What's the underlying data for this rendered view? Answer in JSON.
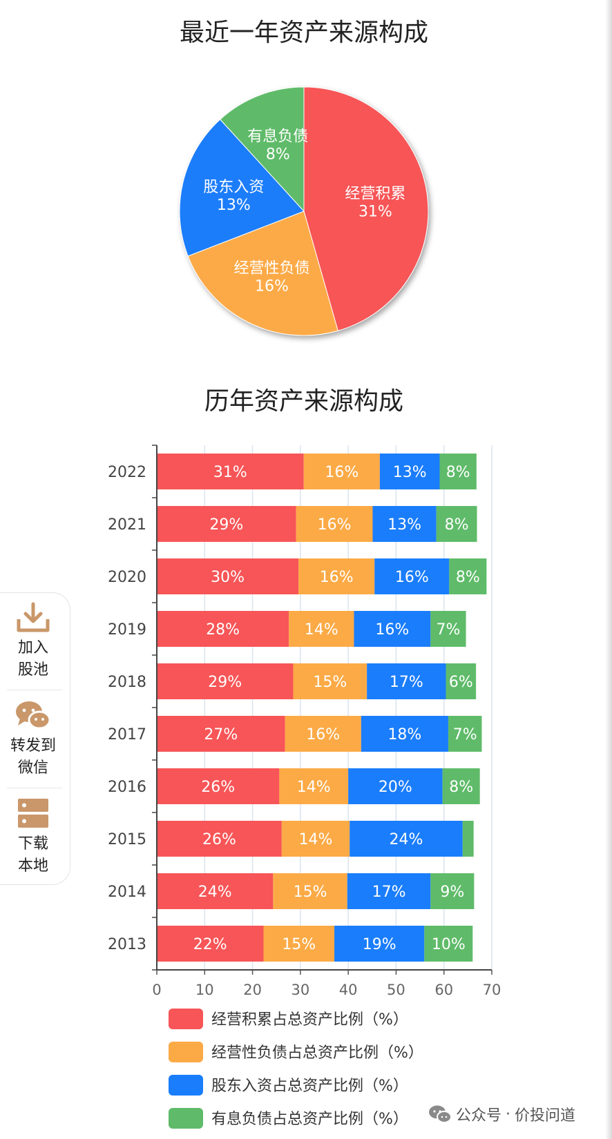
{
  "titles": {
    "pie": "最近一年资产来源构成",
    "bar": "历年资产来源构成"
  },
  "colors": {
    "operating_accumulation": "#f75557",
    "operating_liabilities": "#fcaa46",
    "shareholder_investment": "#1a7dfb",
    "interest_bearing_debt": "#5fbb69"
  },
  "chart_data": [
    {
      "type": "pie",
      "title": "最近一年资产来源构成",
      "slices": [
        {
          "label": "经营积累",
          "value": 31,
          "display": "31%",
          "color": "#f75557"
        },
        {
          "label": "经营性负债",
          "value": 16,
          "display": "16%",
          "color": "#fcaa46"
        },
        {
          "label": "股东入资",
          "value": 13,
          "display": "13%",
          "color": "#1a7dfb"
        },
        {
          "label": "有息负债",
          "value": 8,
          "display": "8%",
          "color": "#5fbb69"
        }
      ]
    },
    {
      "type": "bar",
      "orientation": "horizontal",
      "stacked": true,
      "title": "历年资产来源构成",
      "categories": [
        "2022",
        "2021",
        "2020",
        "2019",
        "2018",
        "2017",
        "2016",
        "2015",
        "2014",
        "2013"
      ],
      "xlim": [
        0,
        70
      ],
      "xticks": [
        "0",
        "10",
        "20",
        "30",
        "40",
        "50",
        "60",
        "70"
      ],
      "grid": true,
      "legend_position": "bottom",
      "series": [
        {
          "name": "经营积累占总资产比例（%）",
          "color": "#f75557",
          "values": [
            30.7,
            29.1,
            29.6,
            27.6,
            28.5,
            26.8,
            25.6,
            26.1,
            24.3,
            22.3
          ],
          "labels": [
            "31%",
            "29%",
            "30%",
            "28%",
            "29%",
            "27%",
            "26%",
            "26%",
            "24%",
            "22%"
          ]
        },
        {
          "name": "经营性负债占总资产比例（%）",
          "color": "#fcaa46",
          "values": [
            15.9,
            16.0,
            15.9,
            13.6,
            15.4,
            15.9,
            14.4,
            14.2,
            15.5,
            14.8
          ],
          "labels": [
            "16%",
            "16%",
            "16%",
            "14%",
            "15%",
            "16%",
            "14%",
            "14%",
            "15%",
            "15%"
          ]
        },
        {
          "name": "股东入资占总资产比例（%）",
          "color": "#1a7dfb",
          "values": [
            12.5,
            13.3,
            15.6,
            16.0,
            16.5,
            18.2,
            19.7,
            23.6,
            17.4,
            18.8
          ],
          "labels": [
            "13%",
            "13%",
            "16%",
            "16%",
            "17%",
            "18%",
            "20%",
            "24%",
            "17%",
            "19%"
          ]
        },
        {
          "name": "有息负债占总资产比例（%）",
          "color": "#5fbb69",
          "values": [
            7.7,
            8.5,
            7.8,
            7.4,
            6.3,
            7.0,
            7.8,
            2.3,
            9.1,
            10.1
          ],
          "labels": [
            "8%",
            "8%",
            "8%",
            "7%",
            "6%",
            "7%",
            "8%",
            "",
            "9%",
            "10%"
          ]
        }
      ]
    }
  ],
  "side_panel": {
    "add_to_pool": [
      "加入",
      "股池"
    ],
    "share_to_wechat": [
      "转发到",
      "微信"
    ],
    "download_local": [
      "下载",
      "本地"
    ]
  },
  "watermark": {
    "account_type": "公众号",
    "separator": "·",
    "account_name": "价投问道"
  }
}
